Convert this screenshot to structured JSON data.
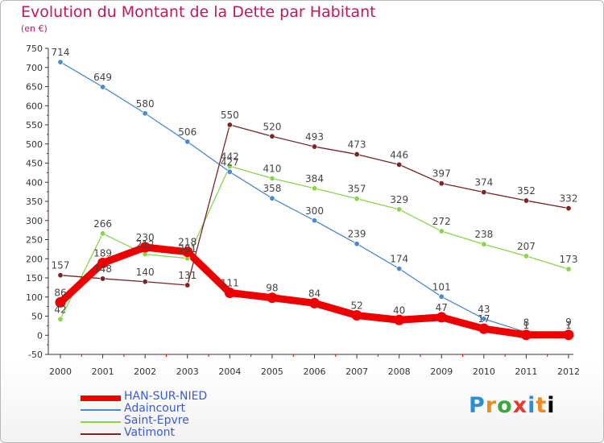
{
  "header": {
    "title": "Evolution du Montant de la Dette par Habitant",
    "unit": "(en €)"
  },
  "brand": {
    "text": "Proxiti"
  },
  "chart_data": {
    "type": "line",
    "title": "Evolution du Montant de la Dette par Habitant",
    "ylabel": "(en €)",
    "xlabel": "",
    "x": [
      "2000",
      "2001",
      "2002",
      "2003",
      "2004",
      "2005",
      "2006",
      "2007",
      "2008",
      "2009",
      "2010",
      "2011",
      "2012"
    ],
    "ylim": [
      -50,
      750
    ],
    "yticks": [
      -50,
      0,
      50,
      100,
      150,
      200,
      250,
      300,
      350,
      400,
      450,
      500,
      550,
      600,
      650,
      700,
      750
    ],
    "grid": false,
    "legend": "bottom-left",
    "series": [
      {
        "name": "HAN-SUR-NIED",
        "color": "#ee0000",
        "emphasis": true,
        "values": [
          86,
          189,
          230,
          218,
          111,
          98,
          84,
          52,
          40,
          47,
          17,
          1,
          1
        ],
        "labels": [
          "86",
          "189",
          "230",
          "218",
          "111",
          "98",
          "84",
          "52",
          "40",
          "47",
          "17",
          "1",
          "1"
        ]
      },
      {
        "name": "Adaincourt",
        "color": "#4a8bd0",
        "values": [
          714,
          649,
          580,
          506,
          427,
          358,
          300,
          239,
          174,
          101,
          43,
          8,
          9
        ],
        "labels": [
          "714",
          "649",
          "580",
          "506",
          "427",
          "358",
          "300",
          "239",
          "174",
          "101",
          "43",
          "8",
          "9"
        ]
      },
      {
        "name": "Saint-Epvre",
        "color": "#88d64a",
        "values": [
          42,
          266,
          212,
          201,
          442,
          410,
          384,
          357,
          329,
          272,
          238,
          207,
          173
        ],
        "labels": [
          "42",
          "266",
          "212",
          "201",
          "442",
          "410",
          "384",
          "357",
          "329",
          "272",
          "238",
          "207",
          "173"
        ]
      },
      {
        "name": "Vatimont",
        "color": "#7a2424",
        "values": [
          157,
          148,
          140,
          131,
          550,
          520,
          493,
          473,
          446,
          397,
          374,
          352,
          332
        ],
        "labels": [
          "157",
          "148",
          "140",
          "131",
          "550",
          "520",
          "493",
          "473",
          "446",
          "397",
          "374",
          "352",
          "332"
        ]
      }
    ]
  }
}
